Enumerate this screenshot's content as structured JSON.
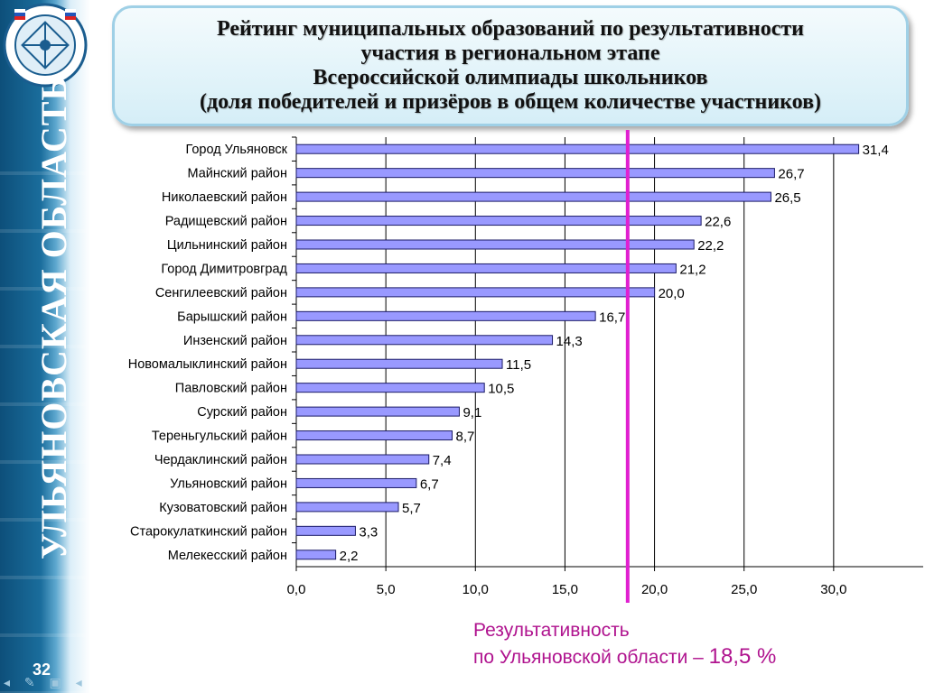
{
  "slide": {
    "page_number": "32",
    "sidebar_text": "УЛЬЯНОВСКАЯ ОБЛАСТЬ",
    "title_lines": [
      "Рейтинг муниципальных образований по результативности",
      "участия в региональном этапе",
      "Всероссийской олимпиады школьников",
      "(доля победителей и призёров в общем количестве участников)"
    ],
    "result_line1": "Результативность",
    "result_line2": "по Ульяновской области –",
    "result_value": "18,5 %",
    "colors": {
      "bar": "#9999ff",
      "bar_border": "#1a1a66",
      "marker": "#e020d0",
      "sidebar": "#1a6d9c",
      "result_text": "#b0148f"
    }
  },
  "chart_data": {
    "type": "bar",
    "orientation": "horizontal",
    "categories": [
      "Город Ульяновск",
      "Майнский район",
      "Николаевский район",
      "Радищевский район",
      "Цильнинский район",
      "Город Димитровград",
      "Сенгилеевский район",
      "Барышский район",
      "Инзенский район",
      "Новомалыклинский район",
      "Павловский район",
      "Сурский район",
      "Тереньгульский район",
      "Чердаклинский район",
      "Ульяновский район",
      "Кузоватовский район",
      "Старокулаткинский район",
      "Мелекесский район"
    ],
    "values": [
      31.4,
      26.7,
      26.5,
      22.6,
      22.2,
      21.2,
      20.0,
      16.7,
      14.3,
      11.5,
      10.5,
      9.1,
      8.7,
      7.4,
      6.7,
      5.7,
      3.3,
      2.2
    ],
    "value_labels": [
      "31,4",
      "26,7",
      "26,5",
      "22,6",
      "22,2",
      "21,2",
      "20,0",
      "16,7",
      "14,3",
      "11,5",
      "10,5",
      "9,1",
      "8,7",
      "7,4",
      "6,7",
      "5,7",
      "3,3",
      "2,2"
    ],
    "x_ticks": [
      0,
      5,
      10,
      15,
      20,
      25,
      30
    ],
    "x_tick_labels": [
      "0,0",
      "5,0",
      "10,0",
      "15,0",
      "20,0",
      "25,0",
      "30,0"
    ],
    "xlim": [
      0,
      35
    ],
    "grid": true,
    "reference_line": {
      "value": 18.5
    }
  }
}
